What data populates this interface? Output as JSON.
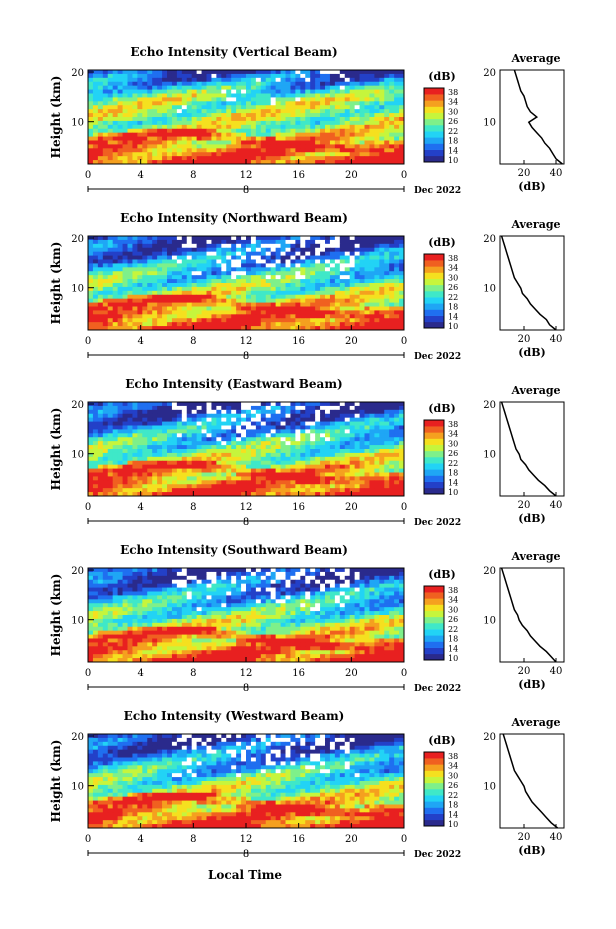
{
  "panels": [
    {
      "title": "Echo Intensity (Vertical Beam)"
    },
    {
      "title": "Echo Intensity (Northward Beam)"
    },
    {
      "title": "Echo Intensity (Eastward Beam)"
    },
    {
      "title": "Echo Intensity (Southward Beam)"
    },
    {
      "title": "Echo Intensity (Westward Beam)"
    }
  ],
  "y_axis_label": "Height (km)",
  "y_ticks": [
    "20",
    "10"
  ],
  "x_ticks": [
    "0",
    "4",
    "8",
    "12",
    "16",
    "20",
    "0"
  ],
  "date_marker": "8",
  "date_label": "Dec 2022",
  "x_axis_label": "Local Time",
  "colorbar": {
    "unit": "(dB)",
    "ticks": [
      "38",
      "34",
      "30",
      "26",
      "22",
      "18",
      "14",
      "10"
    ],
    "colors": [
      "#2a2a8c",
      "#2340c8",
      "#1f6ff0",
      "#1fa6f5",
      "#22d3f5",
      "#3fe8c8",
      "#7ef08a",
      "#c6f53c",
      "#f5e01f",
      "#f5a01f",
      "#f06020",
      "#e82020"
    ]
  },
  "average": {
    "title": "Average",
    "xlabel": "(dB)",
    "y_ticks": [
      "20",
      "10"
    ]
  },
  "chart_data": [
    {
      "type": "heatmap",
      "title": "Echo Intensity (Vertical Beam)",
      "xlabel": "",
      "ylabel": "Height (km)",
      "x_range": [
        0,
        24
      ],
      "y_range": [
        2,
        20
      ],
      "color_range": [
        10,
        38
      ],
      "profile": {
        "title": "Average",
        "xlabel": "(dB)",
        "x_ticks": [
          20,
          40
        ],
        "height_km": [
          2,
          3,
          4,
          5,
          6,
          7,
          8,
          9,
          10,
          11,
          12,
          13,
          14,
          15,
          16,
          17,
          18,
          19,
          20
        ],
        "mean_db": [
          44,
          40,
          38,
          36,
          33,
          31,
          28,
          25,
          23,
          28,
          24,
          22,
          21,
          20,
          18,
          17,
          16,
          15,
          14
        ]
      }
    },
    {
      "type": "heatmap",
      "title": "Echo Intensity (Northward Beam)",
      "xlabel": "",
      "ylabel": "Height (km)",
      "x_range": [
        0,
        24
      ],
      "y_range": [
        2,
        20
      ],
      "color_range": [
        10,
        38
      ],
      "profile": {
        "title": "Average",
        "xlabel": "(dB)",
        "x_ticks": [
          20,
          40
        ],
        "height_km": [
          2,
          3,
          4,
          5,
          6,
          7,
          8,
          9,
          10,
          11,
          12,
          13,
          14,
          15,
          16,
          17,
          18,
          19,
          20
        ],
        "mean_db": [
          40,
          36,
          34,
          30,
          27,
          24,
          22,
          19,
          18,
          16,
          14,
          13,
          12,
          11,
          10,
          9,
          8,
          7,
          6
        ]
      }
    },
    {
      "type": "heatmap",
      "title": "Echo Intensity (Eastward Beam)",
      "xlabel": "",
      "ylabel": "Height (km)",
      "x_range": [
        0,
        24
      ],
      "y_range": [
        2,
        20
      ],
      "color_range": [
        10,
        38
      ],
      "profile": {
        "title": "Average",
        "xlabel": "(dB)",
        "x_ticks": [
          20,
          40
        ],
        "height_km": [
          2,
          3,
          4,
          5,
          6,
          7,
          8,
          9,
          10,
          11,
          12,
          13,
          14,
          15,
          16,
          17,
          18,
          19,
          20
        ],
        "mean_db": [
          40,
          36,
          33,
          29,
          26,
          23,
          21,
          18,
          17,
          15,
          14,
          13,
          12,
          11,
          10,
          9,
          8,
          7,
          6
        ]
      }
    },
    {
      "type": "heatmap",
      "title": "Echo Intensity (Southward Beam)",
      "xlabel": "",
      "ylabel": "Height (km)",
      "x_range": [
        0,
        24
      ],
      "y_range": [
        2,
        20
      ],
      "color_range": [
        10,
        38
      ],
      "profile": {
        "title": "Average",
        "xlabel": "(dB)",
        "x_ticks": [
          20,
          40
        ],
        "height_km": [
          2,
          3,
          4,
          5,
          6,
          7,
          8,
          9,
          10,
          11,
          12,
          13,
          14,
          15,
          16,
          17,
          18,
          19,
          20
        ],
        "mean_db": [
          40,
          37,
          34,
          30,
          27,
          24,
          22,
          19,
          17,
          16,
          14,
          13,
          12,
          11,
          10,
          9,
          8,
          7,
          6
        ]
      }
    },
    {
      "type": "heatmap",
      "title": "Echo Intensity (Westward Beam)",
      "xlabel": "Local Time",
      "ylabel": "Height (km)",
      "x_range": [
        0,
        24
      ],
      "y_range": [
        2,
        20
      ],
      "color_range": [
        10,
        38
      ],
      "profile": {
        "title": "Average",
        "xlabel": "(dB)",
        "x_ticks": [
          20,
          40
        ],
        "height_km": [
          2,
          3,
          4,
          5,
          6,
          7,
          8,
          9,
          10,
          11,
          12,
          13,
          14,
          15,
          16,
          17,
          18,
          19,
          20
        ],
        "mean_db": [
          41,
          37,
          34,
          31,
          28,
          25,
          23,
          21,
          20,
          18,
          16,
          14,
          13,
          12,
          11,
          10,
          9,
          8,
          7
        ]
      }
    }
  ]
}
